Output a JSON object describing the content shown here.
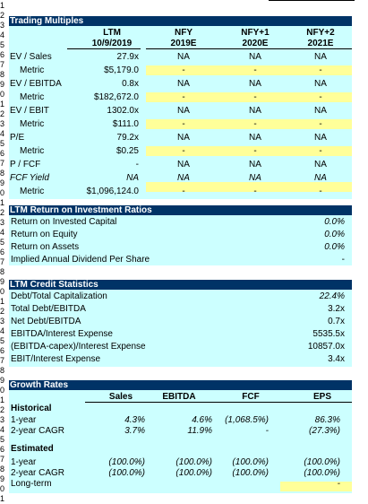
{
  "colors": {
    "header_bg": "#003366",
    "header_text": "#ffffff",
    "cell_bg": "#ccffff",
    "highlight": "#ffff99"
  },
  "row_numbers": [
    "1",
    "2",
    "3",
    "4",
    "5",
    "6",
    "7",
    "8",
    "9",
    "0",
    "1",
    "2",
    "3",
    "4",
    "5",
    "6",
    "7",
    "8",
    "9",
    "0",
    "1",
    "2",
    "3",
    "4",
    "5",
    "6",
    "7",
    "8",
    "9",
    "0",
    "1",
    "2",
    "3",
    "4",
    "5",
    "6",
    "7",
    "8",
    "9",
    "0",
    "1",
    "2",
    "3",
    "4",
    "5",
    "6",
    "7",
    "8",
    "9",
    "0",
    "1"
  ],
  "trading": {
    "title": "Trading Multiples",
    "col_headers": [
      [
        "LTM",
        "10/9/2019"
      ],
      [
        "NFY",
        "2019E"
      ],
      [
        "NFY+1",
        "2020E"
      ],
      [
        "NFY+2",
        "2021E"
      ]
    ],
    "rows": [
      {
        "label": "EV / Sales",
        "vals": [
          "27.9x",
          "NA",
          "NA",
          "NA"
        ]
      },
      {
        "label": "Metric",
        "vals": [
          "$5,179.0",
          "-",
          "-",
          "-"
        ]
      },
      {
        "label": "EV / EBITDA",
        "vals": [
          "0.8x",
          "NA",
          "NA",
          "NA"
        ]
      },
      {
        "label": "Metric",
        "vals": [
          "$182,672.0",
          "-",
          "-",
          "-"
        ]
      },
      {
        "label": "EV / EBIT",
        "vals": [
          "1302.0x",
          "NA",
          "NA",
          "NA"
        ]
      },
      {
        "label": "Metric",
        "vals": [
          "$111.0",
          "-",
          "-",
          "-"
        ]
      },
      {
        "label": "P/E",
        "vals": [
          "79.2x",
          "NA",
          "NA",
          "NA"
        ]
      },
      {
        "label": "Metric",
        "vals": [
          "$0.25",
          "-",
          "-",
          "-"
        ]
      },
      {
        "label": "P / FCF",
        "vals": [
          "-",
          "NA",
          "NA",
          "NA"
        ]
      },
      {
        "label": "FCF Yield",
        "vals": [
          "NA",
          "NA",
          "NA",
          "NA"
        ]
      },
      {
        "label": "Metric",
        "vals": [
          "$1,096,124.0",
          "-",
          "-",
          "-"
        ]
      }
    ]
  },
  "returns": {
    "title": "LTM Return on Investment Ratios",
    "rows": [
      {
        "label": "Return on Invested Capital",
        "val": "0.0%"
      },
      {
        "label": "Return on Equity",
        "val": "0.0%"
      },
      {
        "label": "Return on Assets",
        "val": "0.0%"
      },
      {
        "label": "Implied Annual Dividend Per Share",
        "val": "-"
      }
    ]
  },
  "credit": {
    "title": "LTM Credit Statistics",
    "rows": [
      {
        "label": "Debt/Total Capitalization",
        "val": "22.4%"
      },
      {
        "label": "Total Debt/EBITDA",
        "val": "3.2x"
      },
      {
        "label": "Net Debt/EBITDA",
        "val": "0.7x"
      },
      {
        "label": "EBITDA/Interest Expense",
        "val": "5535.5x"
      },
      {
        "label": "(EBITDA-capex)/Interest Expense",
        "val": "10857.0x"
      },
      {
        "label": "EBIT/Interest Expense",
        "val": "3.4x"
      }
    ]
  },
  "growth": {
    "title": "Growth Rates",
    "col_headers": [
      "Sales",
      "EBITDA",
      "FCF",
      "EPS"
    ],
    "historical_label": "Historical",
    "estimated_label": "Estimated",
    "historical": [
      {
        "label": "1-year",
        "vals": [
          "4.3%",
          "4.6%",
          "(1,068.5%)",
          "86.3%"
        ]
      },
      {
        "label": "2-year CAGR",
        "vals": [
          "3.7%",
          "11.9%",
          "-",
          "(27.3%)"
        ]
      }
    ],
    "estimated": [
      {
        "label": "1-year",
        "vals": [
          "(100.0%)",
          "(100.0%)",
          "(100.0%)",
          "(100.0%)"
        ]
      },
      {
        "label": "2-year CAGR",
        "vals": [
          "(100.0%)",
          "(100.0%)",
          "(100.0%)",
          "(100.0%)"
        ]
      },
      {
        "label": "Long-term",
        "vals": [
          "",
          "",
          "",
          "-"
        ]
      }
    ]
  }
}
